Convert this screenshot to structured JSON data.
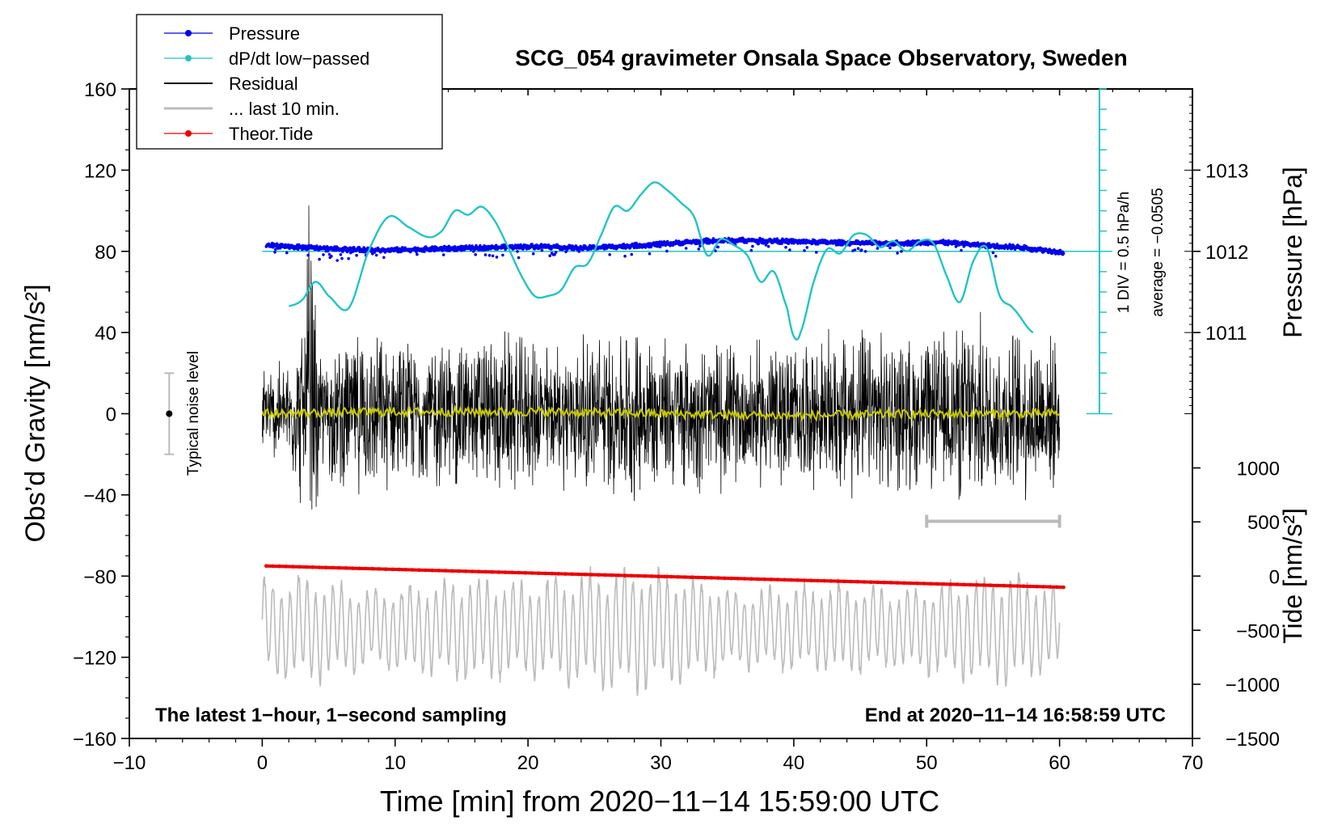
{
  "chart_data": {
    "type": "line",
    "title": "SCG_054 gravimeter Onsala Space Observatory, Sweden",
    "xlabel": "Time [min] from 2020−11−14 15:59:00 UTC",
    "ylabel_left": "Obs’d Gravity [nm/s²]",
    "ylabel_pressure": "Pressure [hPa]",
    "ylabel_tide": "Tide [nm/s²]",
    "xlim": [
      -10,
      70
    ],
    "ylim": [
      -160,
      160
    ],
    "x_ticks": [
      -10,
      0,
      10,
      20,
      30,
      40,
      50,
      60,
      70
    ],
    "x_tick_labels": [
      "−10",
      "0",
      "10",
      "20",
      "30",
      "40",
      "50",
      "60",
      "70"
    ],
    "y_ticks": [
      160,
      120,
      80,
      40,
      0,
      -40,
      -80,
      -120,
      -160
    ],
    "y_tick_labels": [
      "160",
      "120",
      "80",
      "40",
      "0",
      "−40",
      "−80",
      "−120",
      "−160"
    ],
    "pressure_axis": {
      "ticks": [
        1013,
        1012,
        1011
      ],
      "tick_labels": [
        "1013",
        "1012",
        "1011"
      ],
      "gravity_equivalent": [
        120,
        80,
        40
      ]
    },
    "tide_axis": {
      "ticks": [
        1000,
        500,
        0,
        -500,
        -1000,
        -1500
      ],
      "tick_labels": [
        "1000",
        "500",
        "0",
        "−500",
        "−1000",
        "−1500"
      ],
      "gravity_equivalent": [
        -26.7,
        -53.3,
        -80,
        -106.7,
        -133.3,
        -160
      ]
    },
    "dpdt_scale": {
      "label": "1 DIV = 0.5 hPa/h",
      "average": "average = −0.0505",
      "x": 63,
      "range": [
        0,
        160
      ],
      "div": 10
    },
    "noise_bar": {
      "label": "Typical noise level",
      "x": -7,
      "center": 0,
      "range": [
        -20,
        20
      ]
    },
    "last10_bar": {
      "x_range": [
        50,
        60
      ],
      "y": -53
    },
    "footer_left": "The latest 1−hour, 1−second sampling",
    "footer_right": "End at 2020−11−14 16:58:59 UTC",
    "legend": [
      {
        "label": "Pressure",
        "color": "#0000ee",
        "marker": true
      },
      {
        "label": "dP/dt low−passed",
        "color": "#22c4c4",
        "marker": true
      },
      {
        "label": "Residual",
        "color": "#000000",
        "marker": false
      },
      {
        "label": "... last 10 min.",
        "color": "#bbbbbb",
        "marker": false
      },
      {
        "label": "Theor.Tide",
        "color": "#ee0000",
        "marker": true
      }
    ],
    "series": [
      {
        "name": "Pressure",
        "color": "#0000ee",
        "x": [
          0.3,
          3,
          6,
          9,
          12,
          15,
          18,
          21,
          24,
          27,
          30,
          33,
          36,
          39,
          42,
          45,
          48,
          51,
          54,
          57,
          60.3
        ],
        "values": [
          83,
          82,
          81,
          80.5,
          81,
          81.5,
          82,
          82.5,
          81.5,
          82.5,
          83.5,
          85,
          85.5,
          85,
          84.5,
          84,
          84,
          84.5,
          83,
          82,
          79.5
        ]
      },
      {
        "name": "dP/dt low−passed",
        "color": "#22c4c4",
        "x": [
          2,
          3,
          4,
          5,
          6.5,
          8,
          9.5,
          11,
          12.5,
          13.5,
          14.5,
          15.5,
          16.5,
          17.5,
          18.5,
          19.5,
          20.5,
          21.5,
          22.5,
          23.5,
          24.5,
          25.5,
          26.5,
          27.5,
          28.5,
          29.5,
          30.5,
          31.5,
          32.5,
          33.5,
          34.5,
          35.5,
          36.5,
          37.5,
          38.5,
          39.5,
          40,
          40.5,
          41.5,
          42.5,
          43.5,
          44.5,
          45.5,
          46.5,
          47.5,
          48.5,
          49.5,
          50.5,
          51.5,
          52.5,
          53.5,
          54.5,
          55.5,
          56.5,
          58
        ],
        "values": [
          53,
          56,
          65,
          58,
          52,
          80,
          97,
          92,
          87,
          90,
          100,
          98,
          102,
          95,
          82,
          68,
          58,
          58,
          61,
          72,
          74,
          88,
          102,
          100,
          108,
          114,
          110,
          104,
          97,
          78,
          86,
          83,
          78,
          65,
          70,
          52,
          38,
          40,
          65,
          81,
          79,
          88,
          88,
          82,
          85,
          80,
          85,
          84,
          68,
          55,
          75,
          82,
          58,
          52,
          40
        ],
        "line_only": true
      },
      {
        "name": "Residual",
        "color": "#000000",
        "envelope_x": [
          0,
          2,
          3.5,
          4,
          6,
          8,
          10,
          12,
          14,
          16,
          18,
          20,
          22,
          24,
          26,
          28,
          30,
          32,
          34,
          36,
          38,
          40,
          42,
          44,
          46,
          48,
          50,
          52,
          54,
          56,
          58,
          60
        ],
        "amplitude": [
          25,
          30,
          60,
          30,
          40,
          45,
          38,
          40,
          42,
          42,
          45,
          40,
          38,
          42,
          45,
          48,
          42,
          40,
          42,
          36,
          42,
          38,
          40,
          48,
          44,
          42,
          40,
          48,
          52,
          45,
          48,
          38
        ],
        "mean_line": {
          "name": "Residual smoothed",
          "color": "#c8c800",
          "x": [
            0,
            10,
            20,
            30,
            40,
            50,
            60
          ],
          "values": [
            0,
            1,
            1,
            0,
            -1,
            0,
            0
          ]
        }
      },
      {
        "name": "... last 10 min.",
        "color": "#bbbbbb",
        "envelope_x": [
          0,
          4,
          8,
          12,
          16,
          20,
          24,
          28,
          32,
          36,
          40,
          44,
          48,
          52,
          56,
          60
        ],
        "amplitude": [
          28,
          30,
          22,
          26,
          30,
          26,
          32,
          36,
          30,
          22,
          24,
          26,
          22,
          28,
          32,
          24
        ],
        "center": -106
      },
      {
        "name": "Theor.Tide",
        "color": "#ee0000",
        "x": [
          0.3,
          60.3
        ],
        "values": [
          -75,
          -85.5
        ],
        "tide_nm_s2": [
          75,
          -55
        ]
      }
    ]
  }
}
